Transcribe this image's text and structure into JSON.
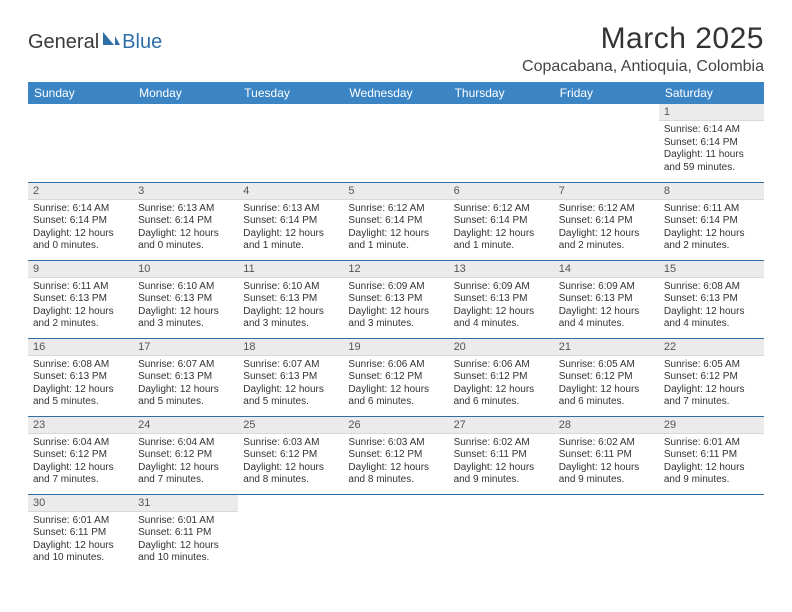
{
  "logo": {
    "part1": "General",
    "part2": "Blue"
  },
  "title": "March 2025",
  "location": "Copacabana, Antioquia, Colombia",
  "weekdays": [
    "Sunday",
    "Monday",
    "Tuesday",
    "Wednesday",
    "Thursday",
    "Friday",
    "Saturday"
  ],
  "colors": {
    "header_bg": "#3b85c4",
    "header_fg": "#ffffff",
    "row_border": "#2f6fa8",
    "daynum_bg": "#ebebeb",
    "logo_blue": "#2f6fa8"
  },
  "weeks": [
    [
      null,
      null,
      null,
      null,
      null,
      null,
      {
        "n": "1",
        "sr": "Sunrise: 6:14 AM",
        "ss": "Sunset: 6:14 PM",
        "dl": "Daylight: 11 hours and 59 minutes."
      }
    ],
    [
      {
        "n": "2",
        "sr": "Sunrise: 6:14 AM",
        "ss": "Sunset: 6:14 PM",
        "dl": "Daylight: 12 hours and 0 minutes."
      },
      {
        "n": "3",
        "sr": "Sunrise: 6:13 AM",
        "ss": "Sunset: 6:14 PM",
        "dl": "Daylight: 12 hours and 0 minutes."
      },
      {
        "n": "4",
        "sr": "Sunrise: 6:13 AM",
        "ss": "Sunset: 6:14 PM",
        "dl": "Daylight: 12 hours and 1 minute."
      },
      {
        "n": "5",
        "sr": "Sunrise: 6:12 AM",
        "ss": "Sunset: 6:14 PM",
        "dl": "Daylight: 12 hours and 1 minute."
      },
      {
        "n": "6",
        "sr": "Sunrise: 6:12 AM",
        "ss": "Sunset: 6:14 PM",
        "dl": "Daylight: 12 hours and 1 minute."
      },
      {
        "n": "7",
        "sr": "Sunrise: 6:12 AM",
        "ss": "Sunset: 6:14 PM",
        "dl": "Daylight: 12 hours and 2 minutes."
      },
      {
        "n": "8",
        "sr": "Sunrise: 6:11 AM",
        "ss": "Sunset: 6:14 PM",
        "dl": "Daylight: 12 hours and 2 minutes."
      }
    ],
    [
      {
        "n": "9",
        "sr": "Sunrise: 6:11 AM",
        "ss": "Sunset: 6:13 PM",
        "dl": "Daylight: 12 hours and 2 minutes."
      },
      {
        "n": "10",
        "sr": "Sunrise: 6:10 AM",
        "ss": "Sunset: 6:13 PM",
        "dl": "Daylight: 12 hours and 3 minutes."
      },
      {
        "n": "11",
        "sr": "Sunrise: 6:10 AM",
        "ss": "Sunset: 6:13 PM",
        "dl": "Daylight: 12 hours and 3 minutes."
      },
      {
        "n": "12",
        "sr": "Sunrise: 6:09 AM",
        "ss": "Sunset: 6:13 PM",
        "dl": "Daylight: 12 hours and 3 minutes."
      },
      {
        "n": "13",
        "sr": "Sunrise: 6:09 AM",
        "ss": "Sunset: 6:13 PM",
        "dl": "Daylight: 12 hours and 4 minutes."
      },
      {
        "n": "14",
        "sr": "Sunrise: 6:09 AM",
        "ss": "Sunset: 6:13 PM",
        "dl": "Daylight: 12 hours and 4 minutes."
      },
      {
        "n": "15",
        "sr": "Sunrise: 6:08 AM",
        "ss": "Sunset: 6:13 PM",
        "dl": "Daylight: 12 hours and 4 minutes."
      }
    ],
    [
      {
        "n": "16",
        "sr": "Sunrise: 6:08 AM",
        "ss": "Sunset: 6:13 PM",
        "dl": "Daylight: 12 hours and 5 minutes."
      },
      {
        "n": "17",
        "sr": "Sunrise: 6:07 AM",
        "ss": "Sunset: 6:13 PM",
        "dl": "Daylight: 12 hours and 5 minutes."
      },
      {
        "n": "18",
        "sr": "Sunrise: 6:07 AM",
        "ss": "Sunset: 6:13 PM",
        "dl": "Daylight: 12 hours and 5 minutes."
      },
      {
        "n": "19",
        "sr": "Sunrise: 6:06 AM",
        "ss": "Sunset: 6:12 PM",
        "dl": "Daylight: 12 hours and 6 minutes."
      },
      {
        "n": "20",
        "sr": "Sunrise: 6:06 AM",
        "ss": "Sunset: 6:12 PM",
        "dl": "Daylight: 12 hours and 6 minutes."
      },
      {
        "n": "21",
        "sr": "Sunrise: 6:05 AM",
        "ss": "Sunset: 6:12 PM",
        "dl": "Daylight: 12 hours and 6 minutes."
      },
      {
        "n": "22",
        "sr": "Sunrise: 6:05 AM",
        "ss": "Sunset: 6:12 PM",
        "dl": "Daylight: 12 hours and 7 minutes."
      }
    ],
    [
      {
        "n": "23",
        "sr": "Sunrise: 6:04 AM",
        "ss": "Sunset: 6:12 PM",
        "dl": "Daylight: 12 hours and 7 minutes."
      },
      {
        "n": "24",
        "sr": "Sunrise: 6:04 AM",
        "ss": "Sunset: 6:12 PM",
        "dl": "Daylight: 12 hours and 7 minutes."
      },
      {
        "n": "25",
        "sr": "Sunrise: 6:03 AM",
        "ss": "Sunset: 6:12 PM",
        "dl": "Daylight: 12 hours and 8 minutes."
      },
      {
        "n": "26",
        "sr": "Sunrise: 6:03 AM",
        "ss": "Sunset: 6:12 PM",
        "dl": "Daylight: 12 hours and 8 minutes."
      },
      {
        "n": "27",
        "sr": "Sunrise: 6:02 AM",
        "ss": "Sunset: 6:11 PM",
        "dl": "Daylight: 12 hours and 9 minutes."
      },
      {
        "n": "28",
        "sr": "Sunrise: 6:02 AM",
        "ss": "Sunset: 6:11 PM",
        "dl": "Daylight: 12 hours and 9 minutes."
      },
      {
        "n": "29",
        "sr": "Sunrise: 6:01 AM",
        "ss": "Sunset: 6:11 PM",
        "dl": "Daylight: 12 hours and 9 minutes."
      }
    ],
    [
      {
        "n": "30",
        "sr": "Sunrise: 6:01 AM",
        "ss": "Sunset: 6:11 PM",
        "dl": "Daylight: 12 hours and 10 minutes."
      },
      {
        "n": "31",
        "sr": "Sunrise: 6:01 AM",
        "ss": "Sunset: 6:11 PM",
        "dl": "Daylight: 12 hours and 10 minutes."
      },
      null,
      null,
      null,
      null,
      null
    ]
  ]
}
